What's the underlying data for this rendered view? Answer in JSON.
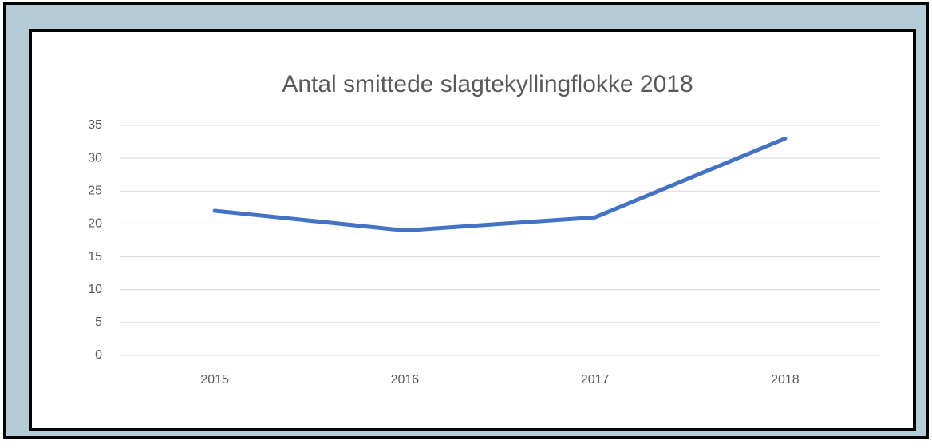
{
  "chart_data": {
    "type": "line",
    "title": "Antal smittede slagtekyllingflokke 2018",
    "categories": [
      "2015",
      "2016",
      "2017",
      "2018"
    ],
    "series": [
      {
        "name": "Antal",
        "color": "#4472c4",
        "values": [
          22,
          19,
          21,
          33
        ]
      }
    ],
    "ylim": [
      0,
      35
    ],
    "yticks": [
      0,
      5,
      10,
      15,
      20,
      25,
      30,
      35
    ],
    "grid": true
  }
}
